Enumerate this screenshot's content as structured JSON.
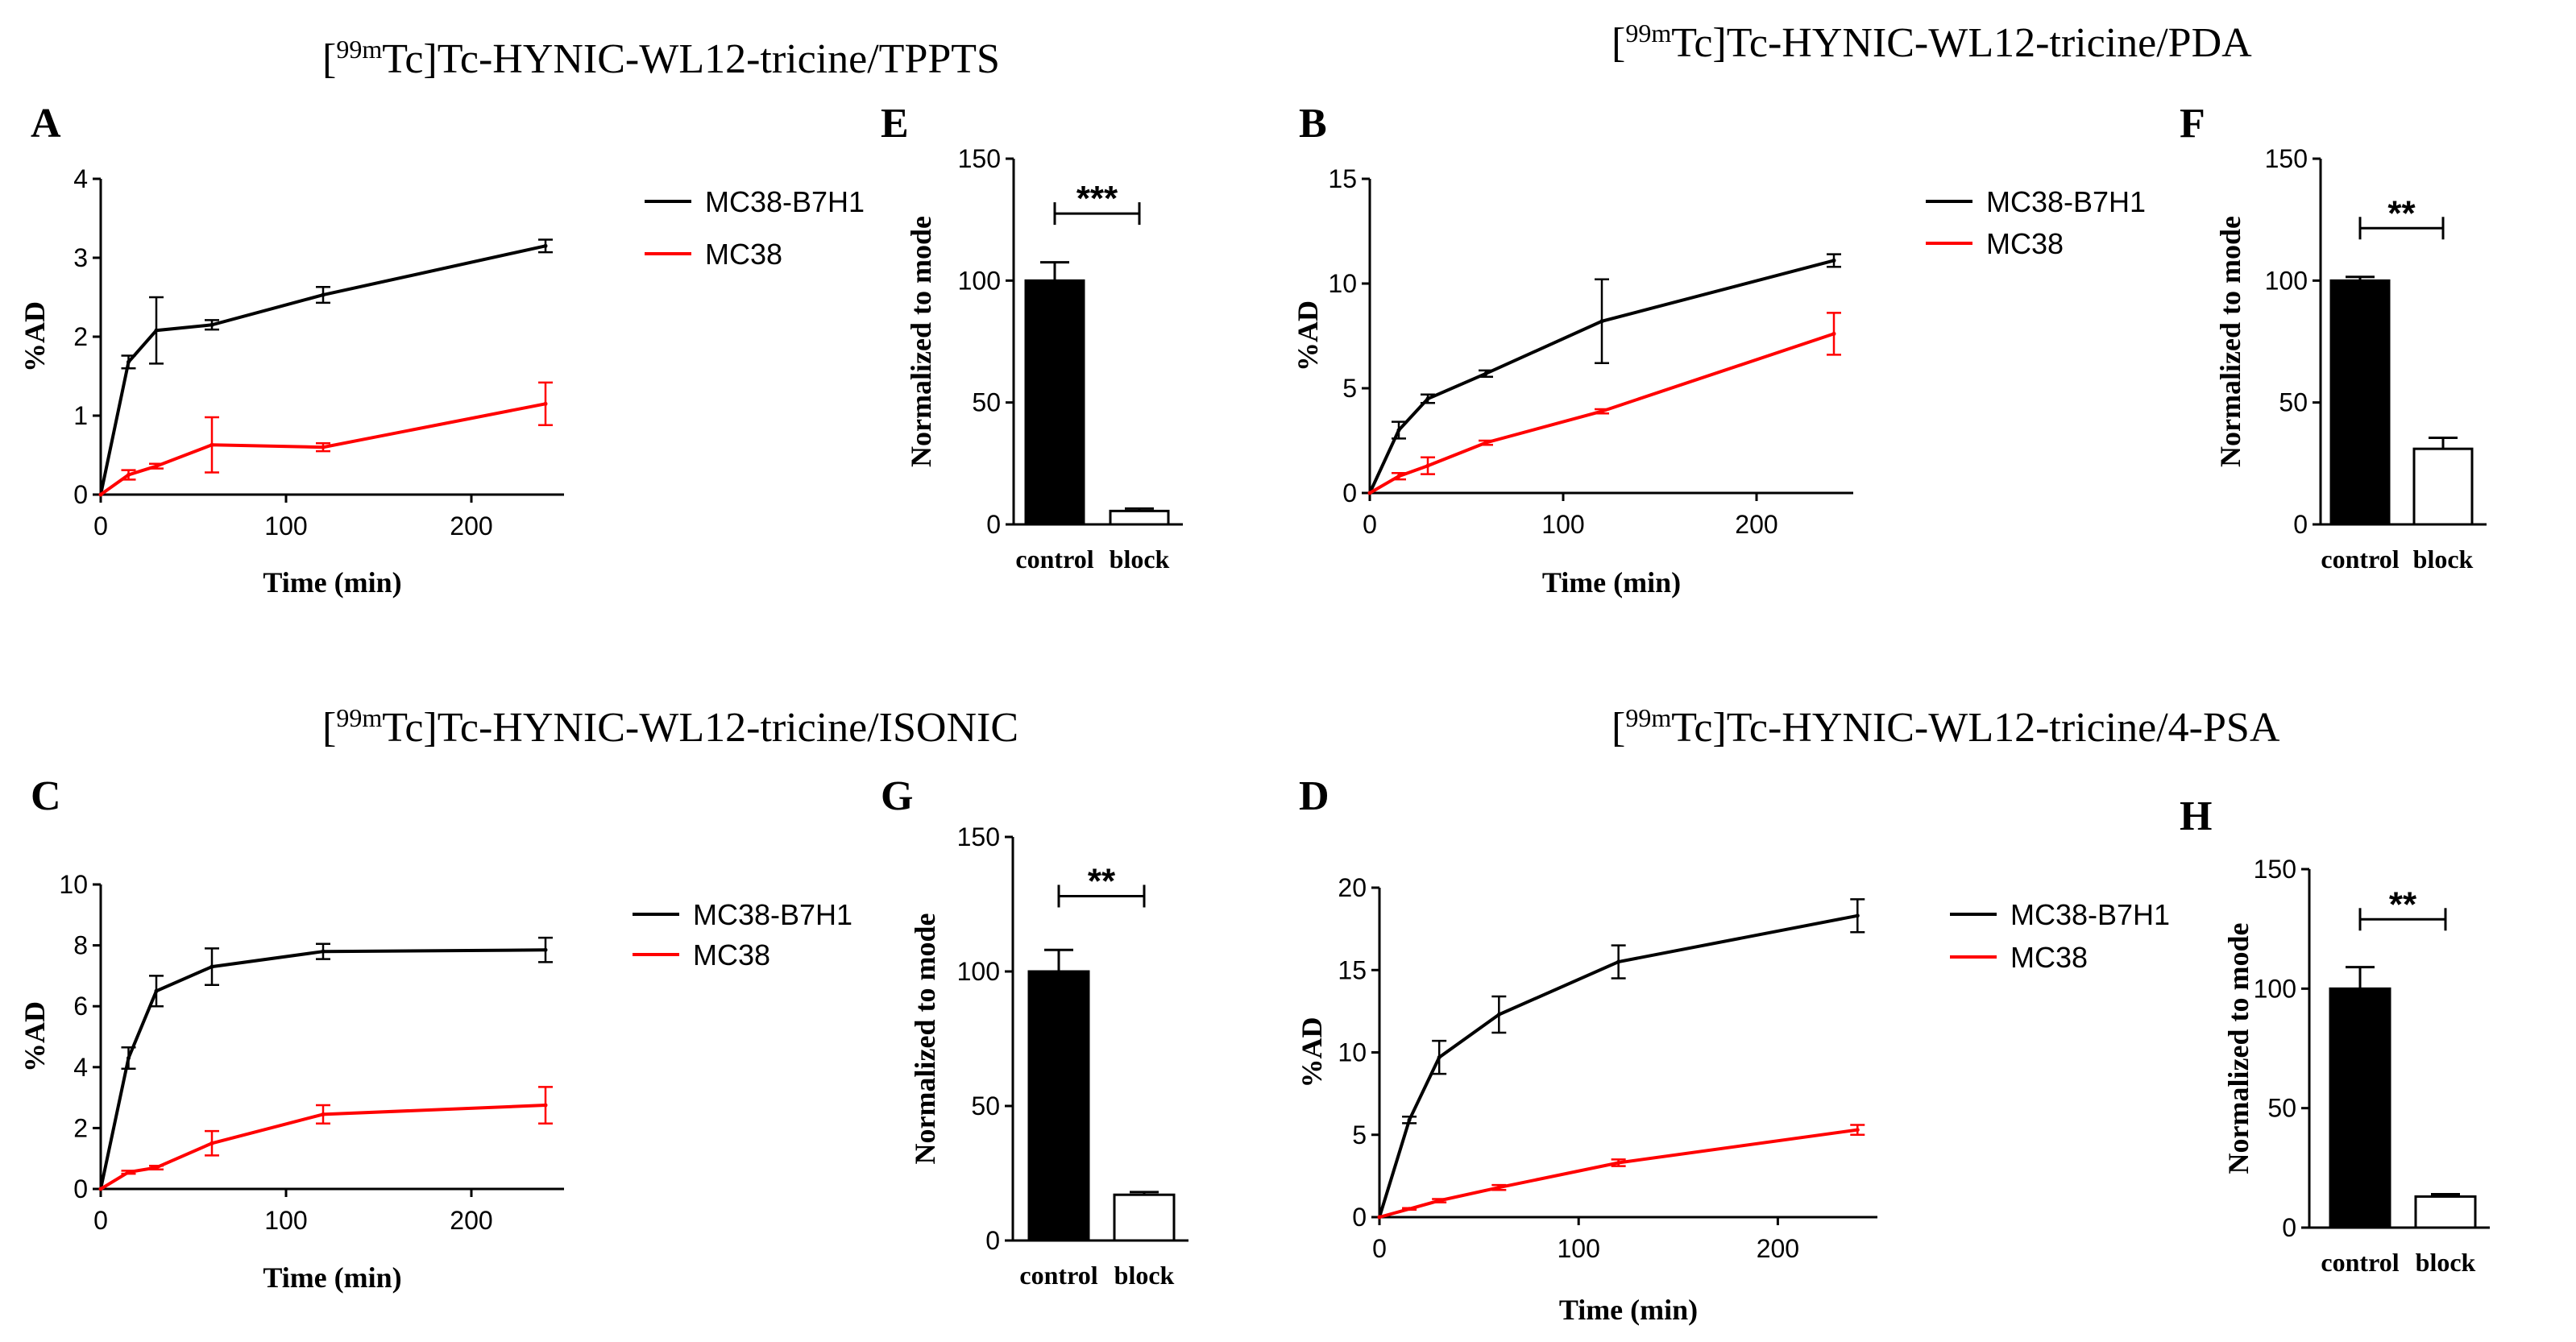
{
  "figure": {
    "titles": [
      {
        "pre": "[",
        "sup": "99m",
        "post": "Tc]Tc-HYNIC-WL12-tricine/TPPTS"
      },
      {
        "pre": "[",
        "sup": "99m",
        "post": "Tc]Tc-HYNIC-WL12-tricine/PDA"
      },
      {
        "pre": "[",
        "sup": "99m",
        "post": "Tc]Tc-HYNIC-WL12-tricine/ISONIC"
      },
      {
        "pre": "[",
        "sup": "99m",
        "post": "Tc]Tc-HYNIC-WL12-tricine/4-PSA"
      }
    ],
    "colors": {
      "mc38_b7h1": "#000000",
      "mc38": "#ff0000",
      "control_bar": "#000000",
      "block_bar": "#ffffff"
    }
  },
  "chart_data": [
    {
      "panel": "A",
      "type": "line",
      "xlabel": "Time (min)",
      "ylabel": "%AD",
      "xlim": [
        0,
        250
      ],
      "ylim": [
        0,
        4
      ],
      "xticks": [
        0,
        100,
        200
      ],
      "yticks": [
        0,
        1,
        2,
        3,
        4
      ],
      "legend": "right",
      "series": [
        {
          "name": "MC38-B7H1",
          "color": "#000000",
          "x": [
            0,
            15,
            30,
            60,
            120,
            240
          ],
          "y": [
            0,
            1.68,
            2.08,
            2.15,
            2.53,
            3.15
          ],
          "err": [
            0,
            0.08,
            0.42,
            0.06,
            0.1,
            0.08
          ]
        },
        {
          "name": "MC38",
          "color": "#ff0000",
          "x": [
            0,
            15,
            30,
            60,
            120,
            240
          ],
          "y": [
            0,
            0.25,
            0.36,
            0.63,
            0.6,
            1.15
          ],
          "err": [
            0,
            0.06,
            0.03,
            0.35,
            0.05,
            0.27
          ]
        }
      ]
    },
    {
      "panel": "E",
      "type": "bar",
      "ylabel": "Normalized to mode",
      "ylim": [
        0,
        150
      ],
      "yticks": [
        0,
        50,
        100,
        150
      ],
      "categories": [
        "control",
        "block"
      ],
      "values": [
        100,
        5.5
      ],
      "err": [
        7.5,
        1
      ],
      "significance": "***"
    },
    {
      "panel": "B",
      "type": "line",
      "xlabel": "Time (min)",
      "ylabel": "%AD",
      "xlim": [
        0,
        250
      ],
      "ylim": [
        0,
        15
      ],
      "xticks": [
        0,
        100,
        200
      ],
      "yticks": [
        0,
        5,
        10,
        15
      ],
      "legend": "right",
      "series": [
        {
          "name": "MC38-B7H1",
          "color": "#000000",
          "x": [
            0,
            15,
            30,
            60,
            120,
            240
          ],
          "y": [
            0,
            3.0,
            4.5,
            5.7,
            8.2,
            11.1
          ],
          "err": [
            0,
            0.4,
            0.2,
            0.15,
            2.0,
            0.3
          ]
        },
        {
          "name": "MC38",
          "color": "#ff0000",
          "x": [
            0,
            15,
            30,
            60,
            120,
            240
          ],
          "y": [
            0,
            0.8,
            1.3,
            2.4,
            3.9,
            7.6
          ],
          "err": [
            0,
            0.15,
            0.4,
            0.1,
            0.1,
            1.0
          ]
        }
      ]
    },
    {
      "panel": "F",
      "type": "bar",
      "ylabel": "Normalized to mode",
      "ylim": [
        0,
        150
      ],
      "yticks": [
        0,
        50,
        100,
        150
      ],
      "categories": [
        "control",
        "block"
      ],
      "values": [
        100,
        31
      ],
      "err": [
        1.5,
        4.5
      ],
      "significance": "**"
    },
    {
      "panel": "C",
      "type": "line",
      "xlabel": "Time (min)",
      "ylabel": "%AD",
      "xlim": [
        0,
        250
      ],
      "ylim": [
        0,
        10
      ],
      "xticks": [
        0,
        100,
        200
      ],
      "yticks": [
        0,
        2,
        4,
        6,
        8,
        10
      ],
      "legend": "right",
      "series": [
        {
          "name": "MC38-B7H1",
          "color": "#000000",
          "x": [
            0,
            15,
            30,
            60,
            120,
            240
          ],
          "y": [
            0,
            4.3,
            6.5,
            7.3,
            7.8,
            7.85
          ],
          "err": [
            0,
            0.35,
            0.5,
            0.6,
            0.25,
            0.4
          ]
        },
        {
          "name": "MC38",
          "color": "#ff0000",
          "x": [
            0,
            15,
            30,
            60,
            120,
            240
          ],
          "y": [
            0,
            0.55,
            0.7,
            1.5,
            2.45,
            2.75
          ],
          "err": [
            0,
            0.05,
            0.06,
            0.4,
            0.3,
            0.6
          ]
        }
      ]
    },
    {
      "panel": "G",
      "type": "bar",
      "ylabel": "Normalized to mode",
      "ylim": [
        0,
        150
      ],
      "yticks": [
        0,
        50,
        100,
        150
      ],
      "categories": [
        "control",
        "block"
      ],
      "values": [
        100,
        17
      ],
      "err": [
        8,
        1
      ],
      "significance": "**"
    },
    {
      "panel": "D",
      "type": "line",
      "xlabel": "Time (min)",
      "ylabel": "%AD",
      "xlim": [
        0,
        250
      ],
      "ylim": [
        0,
        20
      ],
      "xticks": [
        0,
        100,
        200
      ],
      "yticks": [
        0,
        5,
        10,
        15,
        20
      ],
      "legend": "right",
      "series": [
        {
          "name": "MC38-B7H1",
          "color": "#000000",
          "x": [
            0,
            15,
            30,
            60,
            120,
            240
          ],
          "y": [
            0,
            5.9,
            9.7,
            12.3,
            15.5,
            18.3
          ],
          "err": [
            0,
            0.2,
            1.0,
            1.1,
            1.0,
            1.0
          ]
        },
        {
          "name": "MC38",
          "color": "#ff0000",
          "x": [
            0,
            15,
            30,
            60,
            120,
            240
          ],
          "y": [
            0,
            0.5,
            1.0,
            1.8,
            3.3,
            5.3
          ],
          "err": [
            0,
            0.05,
            0.1,
            0.15,
            0.2,
            0.3
          ]
        }
      ]
    },
    {
      "panel": "H",
      "type": "bar",
      "ylabel": "Normalized to mode",
      "ylim": [
        0,
        150
      ],
      "yticks": [
        0,
        50,
        100,
        150
      ],
      "categories": [
        "control",
        "block"
      ],
      "values": [
        100,
        13
      ],
      "err": [
        9,
        1
      ],
      "significance": "**"
    }
  ]
}
